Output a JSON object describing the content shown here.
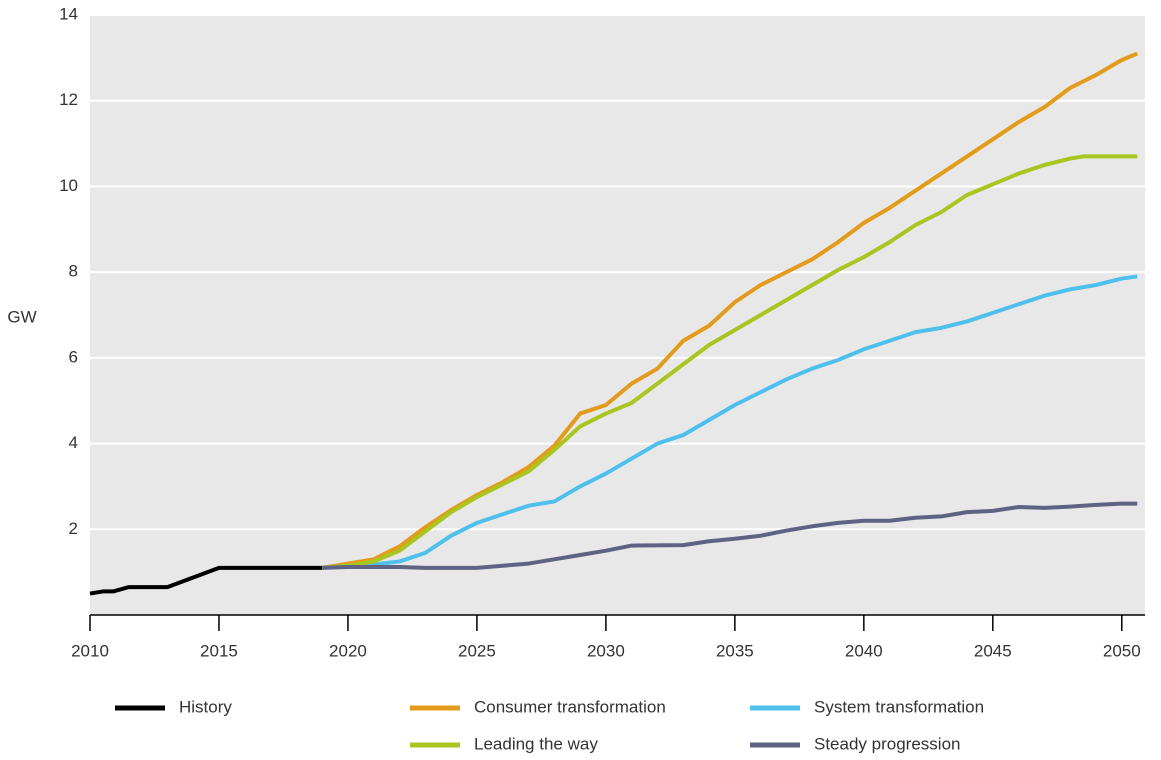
{
  "chart_data": {
    "type": "line",
    "y_label": "GW",
    "xlim": [
      2010,
      2050.9
    ],
    "ylim": [
      0,
      14
    ],
    "xticks": [
      2010,
      2015,
      2020,
      2025,
      2030,
      2035,
      2040,
      2045,
      2050
    ],
    "yticks": [
      2,
      4,
      6,
      8,
      10,
      12,
      14
    ],
    "grid": true,
    "background": "#e8e8e8",
    "legend": "bottom",
    "series": [
      {
        "name": "History",
        "color": "#000000",
        "x": [
          2010,
          2010.5,
          2010.9,
          2011.5,
          2013,
          2015,
          2019
        ],
        "values": [
          0.5,
          0.55,
          0.55,
          0.65,
          0.65,
          1.1,
          1.1
        ]
      },
      {
        "name": "Consumer transformation",
        "color": "#e39b1b",
        "x": [
          2019,
          2020,
          2021,
          2022,
          2023,
          2024,
          2025,
          2026,
          2027,
          2028,
          2029,
          2030,
          2031,
          2032,
          2033,
          2034,
          2035,
          2036,
          2037,
          2038,
          2039,
          2040,
          2041,
          2042,
          2043,
          2044,
          2045,
          2046,
          2047,
          2048,
          2049,
          2050,
          2050.6
        ],
        "values": [
          1.1,
          1.2,
          1.3,
          1.6,
          2.05,
          2.45,
          2.8,
          3.1,
          3.45,
          3.95,
          4.7,
          4.9,
          5.4,
          5.75,
          6.4,
          6.75,
          7.3,
          7.7,
          8.0,
          8.3,
          8.7,
          9.15,
          9.5,
          9.9,
          10.3,
          10.7,
          11.1,
          11.5,
          11.85,
          12.3,
          12.6,
          12.95,
          13.1
        ]
      },
      {
        "name": "System transformation",
        "color": "#4ec0eb",
        "x": [
          2019,
          2020,
          2021,
          2022,
          2023,
          2024,
          2025,
          2026,
          2027,
          2028,
          2029,
          2030,
          2031,
          2032,
          2033,
          2034,
          2035,
          2036,
          2037,
          2038,
          2039,
          2040,
          2041,
          2042,
          2043,
          2044,
          2045,
          2046,
          2047,
          2048,
          2049,
          2050,
          2050.6
        ],
        "values": [
          1.1,
          1.15,
          1.18,
          1.25,
          1.45,
          1.85,
          2.15,
          2.35,
          2.55,
          2.65,
          3.0,
          3.3,
          3.65,
          4.0,
          4.2,
          4.55,
          4.9,
          5.2,
          5.5,
          5.75,
          5.95,
          6.2,
          6.4,
          6.6,
          6.7,
          6.85,
          7.05,
          7.25,
          7.45,
          7.6,
          7.7,
          7.85,
          7.9
        ]
      },
      {
        "name": "Leading the way",
        "color": "#a8c520",
        "x": [
          2019,
          2020,
          2021,
          2022,
          2023,
          2024,
          2025,
          2026,
          2027,
          2028,
          2029,
          2030,
          2031,
          2032,
          2033,
          2034,
          2035,
          2036,
          2037,
          2038,
          2039,
          2040,
          2041,
          2042,
          2043,
          2044,
          2045,
          2046,
          2047,
          2048,
          2048.5,
          2050.6
        ],
        "values": [
          1.1,
          1.15,
          1.25,
          1.5,
          1.95,
          2.4,
          2.75,
          3.05,
          3.35,
          3.85,
          4.4,
          4.7,
          4.95,
          5.4,
          5.85,
          6.3,
          6.65,
          7.0,
          7.35,
          7.7,
          8.05,
          8.35,
          8.7,
          9.1,
          9.4,
          9.8,
          10.05,
          10.3,
          10.5,
          10.65,
          10.7,
          10.7
        ]
      },
      {
        "name": "Steady progression",
        "color": "#5e6384",
        "x": [
          2019,
          2020,
          2022,
          2023,
          2025,
          2026,
          2027,
          2028,
          2029,
          2030,
          2031,
          2033,
          2034,
          2035,
          2036,
          2037,
          2038,
          2039,
          2040,
          2041,
          2042,
          2043,
          2044,
          2045,
          2046,
          2047,
          2048,
          2049,
          2050,
          2050.6
        ],
        "values": [
          1.1,
          1.12,
          1.12,
          1.1,
          1.1,
          1.15,
          1.2,
          1.3,
          1.4,
          1.5,
          1.62,
          1.63,
          1.72,
          1.78,
          1.85,
          1.97,
          2.07,
          2.15,
          2.2,
          2.2,
          2.27,
          2.3,
          2.4,
          2.43,
          2.52,
          2.5,
          2.53,
          2.57,
          2.6,
          2.6
        ]
      }
    ]
  }
}
